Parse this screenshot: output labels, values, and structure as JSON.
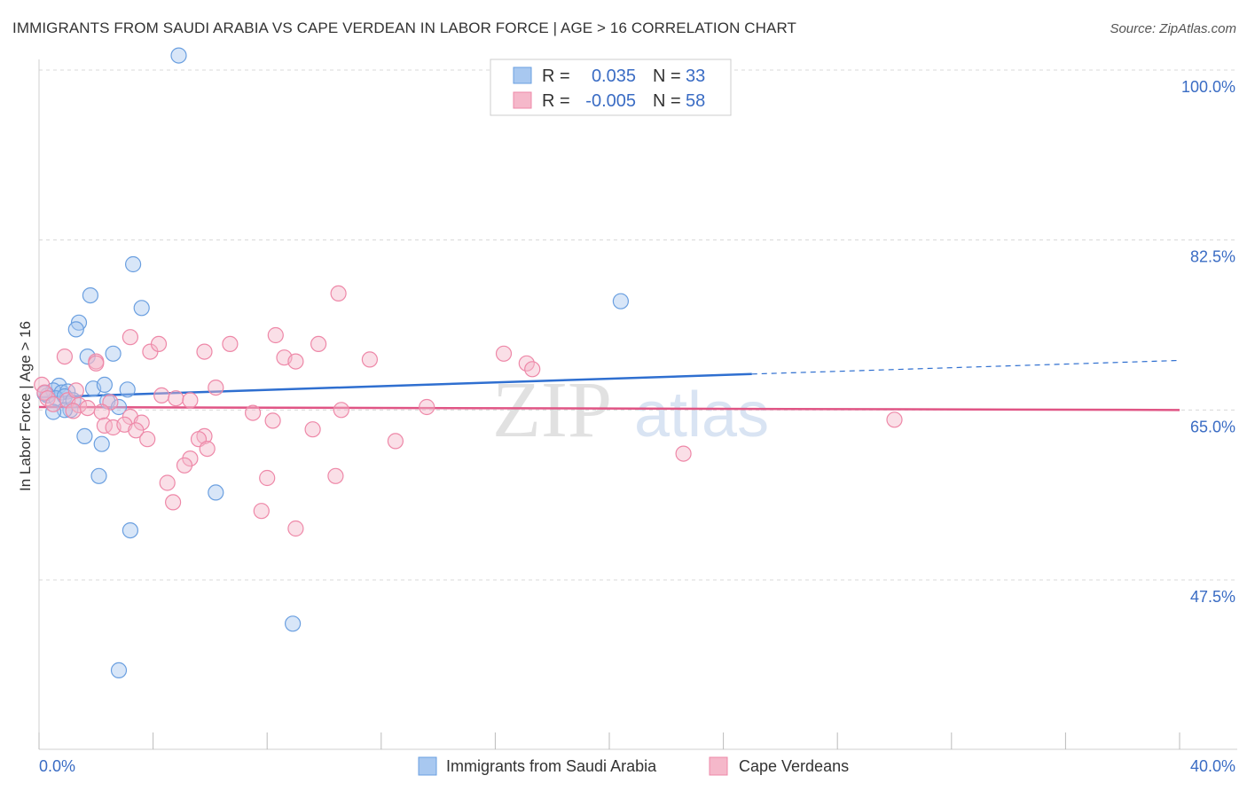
{
  "header": {
    "title": "IMMIGRANTS FROM SAUDI ARABIA VS CAPE VERDEAN IN LABOR FORCE | AGE > 16 CORRELATION CHART",
    "source": "Source: ZipAtlas.com"
  },
  "watermark": {
    "part1": "ZIP",
    "part2": "atlas"
  },
  "stats_box": {
    "rows": [
      {
        "r_label": "R =",
        "r_value": "0.035",
        "n_label": "N =",
        "n_value": "33",
        "color": "#a8c8f0"
      },
      {
        "r_label": "R =",
        "r_value": "-0.005",
        "n_label": "N =",
        "n_value": "58",
        "color": "#f5b8ca"
      }
    ]
  },
  "chart_data": {
    "type": "scatter",
    "title": "IMMIGRANTS FROM SAUDI ARABIA VS CAPE VERDEAN IN LABOR FORCE | AGE > 16 CORRELATION CHART",
    "xlabel": "",
    "ylabel": "In Labor Force | Age > 16",
    "xlim": [
      0,
      40
    ],
    "ylim": [
      33,
      102
    ],
    "x_tick_labels": [
      {
        "value": 0,
        "label": "0.0%"
      },
      {
        "value": 40,
        "label": "40.0%"
      }
    ],
    "y_tick_labels": [
      {
        "value": 100,
        "label": "100.0%"
      },
      {
        "value": 82.5,
        "label": "82.5%"
      },
      {
        "value": 65,
        "label": "65.0%"
      },
      {
        "value": 47.5,
        "label": "47.5%"
      }
    ],
    "x_minor_ticks": [
      0,
      4,
      8,
      12,
      16,
      20,
      24,
      28,
      32,
      36,
      40
    ],
    "grid": true,
    "legend_position": "bottom",
    "series": [
      {
        "name": "Immigrants from Saudi Arabia",
        "color": "#6a9fe0",
        "fill": "#a8c8f0",
        "trend": {
          "x0": 0,
          "y0": 66.3,
          "x1": 25,
          "y1": 68.7,
          "dash_to_x": 40,
          "dash_to_y": 70.1,
          "color": "#2f6fd0"
        },
        "points": [
          [
            4.9,
            101.5
          ],
          [
            3.3,
            80.0
          ],
          [
            1.8,
            76.8
          ],
          [
            3.6,
            75.5
          ],
          [
            1.4,
            74.0
          ],
          [
            1.3,
            73.3
          ],
          [
            1.7,
            70.5
          ],
          [
            2.6,
            70.8
          ],
          [
            0.7,
            67.5
          ],
          [
            1.9,
            67.2
          ],
          [
            2.3,
            67.6
          ],
          [
            0.5,
            67.0
          ],
          [
            0.8,
            66.8
          ],
          [
            1.0,
            66.9
          ],
          [
            0.3,
            66.5
          ],
          [
            0.6,
            66.2
          ],
          [
            0.9,
            66.4
          ],
          [
            3.1,
            67.1
          ],
          [
            2.4,
            65.9
          ],
          [
            2.8,
            65.3
          ],
          [
            1.1,
            65.0
          ],
          [
            0.9,
            65.0
          ],
          [
            0.5,
            64.8
          ],
          [
            1.6,
            62.3
          ],
          [
            2.2,
            61.5
          ],
          [
            2.1,
            58.2
          ],
          [
            6.2,
            56.5
          ],
          [
            3.2,
            52.6
          ],
          [
            8.9,
            43.0
          ],
          [
            2.8,
            38.2
          ],
          [
            20.4,
            76.2
          ],
          [
            0.2,
            66.7
          ],
          [
            1.2,
            66.0
          ]
        ]
      },
      {
        "name": "Cape Verdeans",
        "color": "#ee88a8",
        "fill": "#f5b8ca",
        "trend": {
          "x0": 0,
          "y0": 65.3,
          "x1": 40,
          "y1": 65.0,
          "color": "#e05585"
        },
        "points": [
          [
            0.1,
            67.6
          ],
          [
            0.2,
            66.8
          ],
          [
            0.3,
            66.2
          ],
          [
            0.5,
            65.6
          ],
          [
            1.0,
            66.0
          ],
          [
            1.3,
            67.0
          ],
          [
            0.9,
            70.5
          ],
          [
            2.0,
            70.0
          ],
          [
            1.4,
            65.5
          ],
          [
            1.7,
            65.2
          ],
          [
            2.5,
            65.8
          ],
          [
            2.2,
            64.8
          ],
          [
            2.3,
            63.4
          ],
          [
            2.6,
            63.2
          ],
          [
            3.2,
            64.3
          ],
          [
            3.0,
            63.5
          ],
          [
            3.6,
            63.7
          ],
          [
            3.4,
            62.9
          ],
          [
            3.8,
            62.0
          ],
          [
            3.2,
            72.5
          ],
          [
            3.9,
            71.0
          ],
          [
            4.2,
            71.8
          ],
          [
            4.3,
            66.5
          ],
          [
            4.8,
            66.2
          ],
          [
            5.3,
            66.0
          ],
          [
            5.8,
            62.3
          ],
          [
            5.6,
            62.0
          ],
          [
            5.9,
            61.0
          ],
          [
            5.3,
            60.0
          ],
          [
            4.5,
            57.5
          ],
          [
            4.7,
            55.5
          ],
          [
            5.1,
            59.3
          ],
          [
            5.8,
            71.0
          ],
          [
            6.2,
            67.3
          ],
          [
            6.7,
            71.8
          ],
          [
            7.5,
            64.7
          ],
          [
            7.8,
            54.6
          ],
          [
            8.0,
            58.0
          ],
          [
            8.2,
            63.9
          ],
          [
            8.3,
            72.7
          ],
          [
            8.6,
            70.4
          ],
          [
            9.0,
            70.0
          ],
          [
            9.0,
            52.8
          ],
          [
            9.8,
            71.8
          ],
          [
            9.6,
            63.0
          ],
          [
            10.5,
            77.0
          ],
          [
            10.4,
            58.2
          ],
          [
            10.6,
            65.0
          ],
          [
            11.6,
            70.2
          ],
          [
            12.5,
            61.8
          ],
          [
            13.6,
            65.3
          ],
          [
            16.3,
            70.8
          ],
          [
            17.1,
            69.8
          ],
          [
            17.3,
            69.2
          ],
          [
            22.6,
            60.5
          ],
          [
            30.0,
            64.0
          ],
          [
            2.0,
            69.8
          ],
          [
            1.2,
            64.9
          ]
        ]
      }
    ]
  }
}
